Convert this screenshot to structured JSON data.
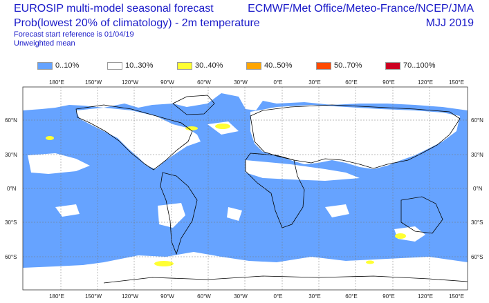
{
  "header": {
    "title": "EUROSIP multi-model seasonal forecast",
    "subtitle": "Prob(lowest 20% of climatology) - 2m temperature",
    "forecast_start": "Forecast start reference is 01/04/19",
    "weighting": "Unweighted mean",
    "source": "ECMWF/Met Office/Meteo-France/NCEP/JMA",
    "period": "MJJ 2019"
  },
  "legend": [
    {
      "label": "0..10%",
      "color": "#66a3ff"
    },
    {
      "label": "10..30%",
      "color": "#ffffff"
    },
    {
      "label": "30..40%",
      "color": "#ffff33"
    },
    {
      "label": "40..50%",
      "color": "#ffa500"
    },
    {
      "label": "50..70%",
      "color": "#ff4a00"
    },
    {
      "label": "70..100%",
      "color": "#cc0022"
    }
  ],
  "map": {
    "longitude_labels": [
      "180°E",
      "150°W",
      "120°W",
      "90°W",
      "60°W",
      "30°W",
      "0°E",
      "30°E",
      "60°E",
      "90°E",
      "120°E",
      "150°E"
    ],
    "latitude_labels": [
      "60°N",
      "30°N",
      "0°N",
      "30°S",
      "60°S"
    ],
    "colors": {
      "ocean_low": "#66a3ff",
      "land": "#ffffff",
      "coast": "#000000",
      "grid": "#777777"
    }
  }
}
